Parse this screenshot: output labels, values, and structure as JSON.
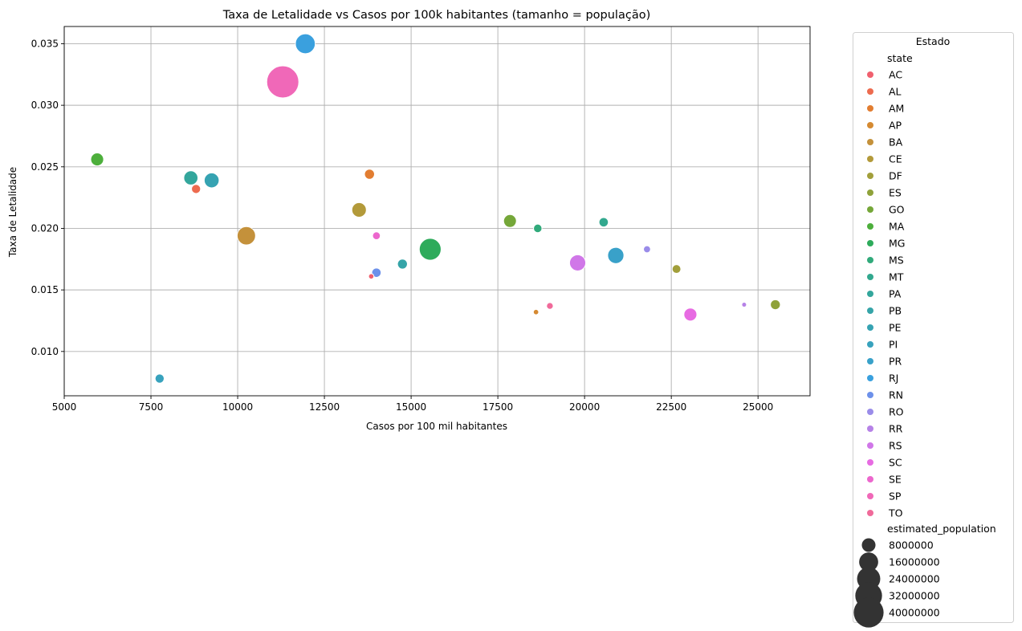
{
  "chart_data": {
    "type": "scatter",
    "title": "Taxa de Letalidade vs Casos por 100k habitantes (tamanho = população)",
    "xlabel": "Casos por 100 mil habitantes",
    "ylabel": "Taxa de Letalidade",
    "xlim": [
      5000,
      26500
    ],
    "ylim": [
      0.0064,
      0.0364
    ],
    "xticks": [
      5000,
      7500,
      10000,
      12500,
      15000,
      17500,
      20000,
      22500,
      25000
    ],
    "yticks": [
      0.01,
      0.015,
      0.02,
      0.025,
      0.03,
      0.035
    ],
    "xtick_labels": [
      "5000",
      "7500",
      "10000",
      "12500",
      "15000",
      "17500",
      "20000",
      "22500",
      "25000"
    ],
    "ytick_labels": [
      "0.010",
      "0.015",
      "0.020",
      "0.025",
      "0.030",
      "0.035"
    ],
    "grid": true,
    "legend": {
      "title": "Estado",
      "placement": "outside-right",
      "hue_title": "state",
      "size_title": "estimated_population",
      "size_entries": [
        "8000000",
        "16000000",
        "24000000",
        "32000000",
        "40000000"
      ],
      "size_values": [
        8000000,
        16000000,
        24000000,
        32000000,
        40000000
      ]
    },
    "series": [
      {
        "name": "AC",
        "color": "#f0606e",
        "x": 13850,
        "y": 0.0161,
        "population": 830000
      },
      {
        "name": "AL",
        "color": "#ed6b4f",
        "x": 8800,
        "y": 0.0232,
        "population": 3300000
      },
      {
        "name": "AM",
        "color": "#e27d31",
        "x": 13800,
        "y": 0.0244,
        "population": 4100000
      },
      {
        "name": "AP",
        "color": "#d58a32",
        "x": 18600,
        "y": 0.0132,
        "population": 850000
      },
      {
        "name": "BA",
        "color": "#c4913b",
        "x": 10250,
        "y": 0.0194,
        "population": 14900000
      },
      {
        "name": "CE",
        "color": "#b39a3a",
        "x": 13500,
        "y": 0.0215,
        "population": 9100000
      },
      {
        "name": "DF",
        "color": "#a29f3b",
        "x": 22650,
        "y": 0.0167,
        "population": 3000000
      },
      {
        "name": "ES",
        "color": "#8fa23a",
        "x": 25500,
        "y": 0.0138,
        "population": 4000000
      },
      {
        "name": "GO",
        "color": "#75a739",
        "x": 17850,
        "y": 0.0206,
        "population": 7000000
      },
      {
        "name": "MA",
        "color": "#4daf3c",
        "x": 5950,
        "y": 0.0256,
        "population": 7100000
      },
      {
        "name": "MG",
        "color": "#2eab5b",
        "x": 15550,
        "y": 0.0183,
        "population": 21200000
      },
      {
        "name": "MS",
        "color": "#31aa7b",
        "x": 18650,
        "y": 0.02,
        "population": 2800000
      },
      {
        "name": "MT",
        "color": "#32a88e",
        "x": 20550,
        "y": 0.0205,
        "population": 3500000
      },
      {
        "name": "PA",
        "color": "#33a69c",
        "x": 8650,
        "y": 0.0241,
        "population": 8600000
      },
      {
        "name": "PB",
        "color": "#35a4a8",
        "x": 14750,
        "y": 0.0171,
        "population": 4000000
      },
      {
        "name": "PE",
        "color": "#36a3b2",
        "x": 9250,
        "y": 0.0239,
        "population": 9600000
      },
      {
        "name": "PI",
        "color": "#38a2bd",
        "x": 7750,
        "y": 0.0078,
        "population": 3300000
      },
      {
        "name": "PR",
        "color": "#39a1c9",
        "x": 20900,
        "y": 0.0178,
        "population": 11500000
      },
      {
        "name": "RJ",
        "color": "#3aa0de",
        "x": 11950,
        "y": 0.035,
        "population": 17400000
      },
      {
        "name": "RN",
        "color": "#6d91ea",
        "x": 14000,
        "y": 0.0164,
        "population": 3500000
      },
      {
        "name": "RO",
        "color": "#9a8ce9",
        "x": 21800,
        "y": 0.0183,
        "population": 1800000
      },
      {
        "name": "RR",
        "color": "#b682e7",
        "x": 24600,
        "y": 0.0138,
        "population": 600000
      },
      {
        "name": "RS",
        "color": "#d077e8",
        "x": 19800,
        "y": 0.0172,
        "population": 11400000
      },
      {
        "name": "SC",
        "color": "#e76be2",
        "x": 23050,
        "y": 0.013,
        "population": 7200000
      },
      {
        "name": "SE",
        "color": "#ec67cd",
        "x": 14000,
        "y": 0.0194,
        "population": 2300000
      },
      {
        "name": "SP",
        "color": "#f068b8",
        "x": 11300,
        "y": 0.0319,
        "population": 46300000
      },
      {
        "name": "TO",
        "color": "#f06a9a",
        "x": 19000,
        "y": 0.0137,
        "population": 1600000
      }
    ]
  }
}
